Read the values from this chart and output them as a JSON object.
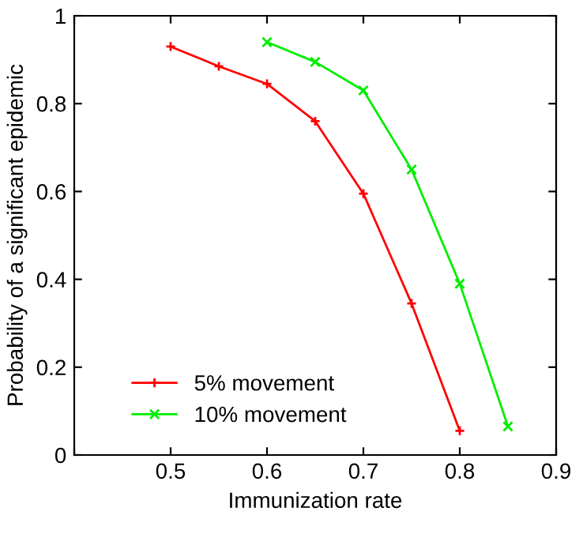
{
  "chart_data": {
    "type": "line",
    "xlabel": "Immunization rate",
    "ylabel": "Probability of a significant epidemic",
    "xlim": [
      0.4,
      0.9
    ],
    "xticks": [
      {
        "value": 0.4,
        "label": null
      },
      0.5,
      0.6,
      0.7,
      0.8,
      0.9
    ],
    "ylim": [
      0,
      1
    ],
    "yticks": [
      0,
      0.2,
      0.4,
      0.6,
      0.8,
      1
    ],
    "legend": "bottom left",
    "grid": false,
    "series": [
      {
        "name": "5% movement",
        "color": "#ff0000",
        "marker": "plus",
        "x": [
          0.5,
          0.55,
          0.6,
          0.65,
          0.7,
          0.75,
          0.8
        ],
        "values": [
          0.93,
          0.885,
          0.845,
          0.76,
          0.595,
          0.345,
          0.055
        ]
      },
      {
        "name": "10% movement",
        "color": "#00ee00",
        "marker": "cross",
        "x": [
          0.6,
          0.65,
          0.7,
          0.75,
          0.8,
          0.85
        ],
        "values": [
          0.94,
          0.895,
          0.83,
          0.65,
          0.39,
          0.065
        ]
      }
    ]
  }
}
